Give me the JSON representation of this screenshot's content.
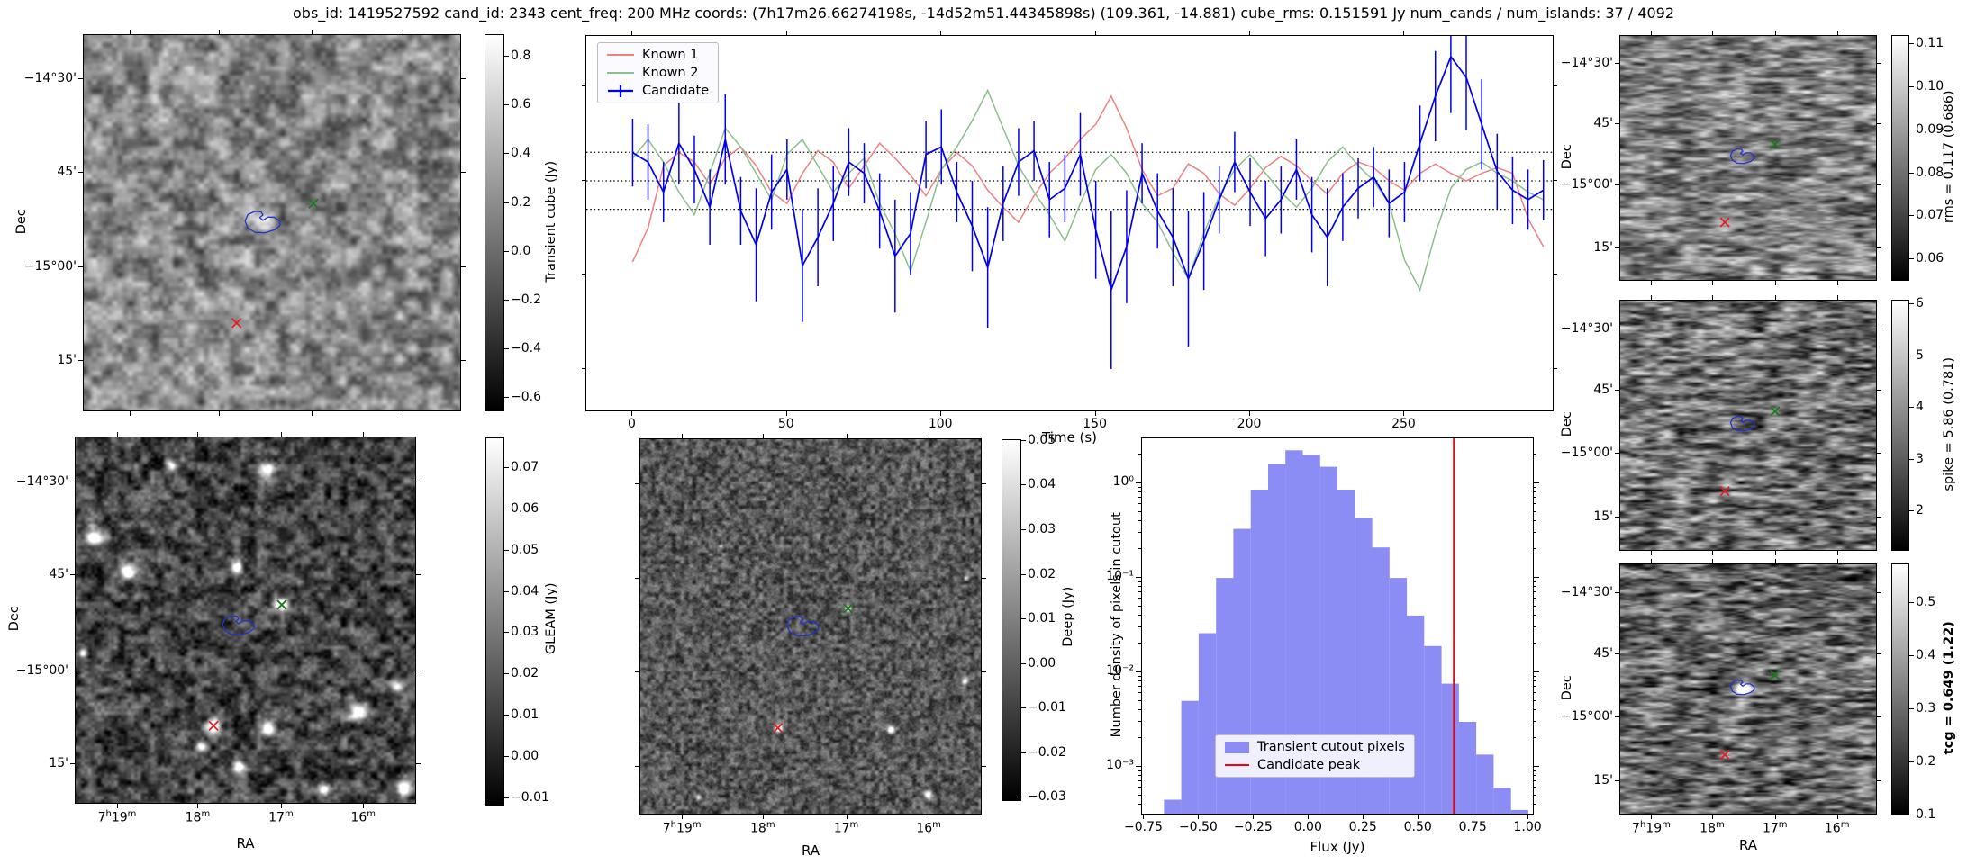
{
  "title": "obs_id: 1419527592 cand_id: 2343 cent_freq: 200 MHz coords: (7h17m26.66274198s, -14d52m51.44345898s) (109.361, -14.881) cube_rms: 0.151591 Jy num_cands / num_islands: 37 / 4092",
  "colors": {
    "known1": "#f08080",
    "known2": "#8cbf8c",
    "candidate": "#0000ee",
    "hist_fill": "#8c8cf5",
    "peak_line": "#ff0000",
    "contour": "#2233cc",
    "green_marker": "#1a7a1a",
    "red_marker": "#e02020",
    "dotted_line": "#000000"
  },
  "sky_axes": {
    "dec_label": "Dec",
    "ra_label": "RA",
    "dec_ticks": [
      "-14°30'",
      "45'",
      "-15°00'",
      "15'"
    ],
    "ra_ticks": [
      "7h19m",
      "18m",
      "17m",
      "16m"
    ]
  },
  "chart_data": [
    {
      "id": "transient_cutout",
      "type": "heatmap",
      "ylabel": "Dec",
      "colorbar": {
        "label": "Transient cube (Jy)",
        "tick_labels": [
          "0.8",
          "0.6",
          "0.4",
          "0.2",
          "0.0",
          "-0.2",
          "-0.4",
          "-0.6"
        ],
        "vmin": -0.66,
        "vmax": 0.89
      },
      "markers": {
        "green_x": [
          0.61,
          0.449
        ],
        "red_x": [
          0.406,
          0.767
        ],
        "contour": [
          0.476,
          0.499
        ]
      }
    },
    {
      "id": "lightcurve",
      "type": "line",
      "xlabel": "Time (s)",
      "x_ticks": [
        0,
        50,
        100,
        150,
        200,
        250
      ],
      "xlim": [
        -15,
        298
      ],
      "ylim": [
        -1.22,
        0.77
      ],
      "x_step": 5,
      "hlines": [
        0.151591,
        0,
        -0.151591
      ],
      "legend_position": "upper left",
      "series": [
        {
          "name": "Known 1",
          "values": [
            -0.43,
            -0.25,
            0.08,
            0.15,
            0.1,
            -0.02,
            0.12,
            0.18,
            0.08,
            -0.06,
            -0.12,
            0.04,
            0.16,
            0.1,
            -0.04,
            0.08,
            0.2,
            0.12,
            0.03,
            -0.08,
            0.06,
            0.15,
            0.08,
            -0.05,
            -0.14,
            -0.22,
            -0.08,
            0.04,
            0.12,
            0.22,
            0.3,
            0.45,
            0.28,
            0.06,
            -0.08,
            -0.04,
            0.09,
            0.04,
            -0.07,
            -0.13,
            -0.04,
            0.07,
            0.13,
            0.08,
            0.0,
            -0.07,
            0.04,
            0.1,
            0.07,
            0.0,
            -0.05,
            0.04,
            0.09,
            0.04,
            0.0,
            0.04,
            0.07,
            0.04,
            -0.2,
            -0.35
          ]
        },
        {
          "name": "Known 2",
          "values": [
            0.12,
            0.22,
            0.1,
            -0.06,
            -0.18,
            0.04,
            0.28,
            0.18,
            0.04,
            -0.1,
            0.14,
            0.22,
            0.08,
            -0.06,
            0.04,
            0.12,
            -0.12,
            -0.28,
            -0.48,
            -0.22,
            0.06,
            0.18,
            0.32,
            0.48,
            0.28,
            0.08,
            -0.06,
            -0.18,
            -0.32,
            -0.12,
            0.06,
            0.14,
            0.04,
            -0.12,
            -0.22,
            -0.38,
            -0.52,
            -0.28,
            -0.08,
            0.06,
            0.14,
            0.04,
            -0.06,
            -0.14,
            -0.04,
            0.1,
            0.18,
            0.08,
            0.0,
            -0.12,
            -0.42,
            -0.58,
            -0.28,
            -0.04,
            0.06,
            0.1,
            0.04,
            0.0,
            -0.06,
            -0.1
          ]
        },
        {
          "name": "Candidate",
          "values": [
            0.15,
            0.1,
            -0.06,
            0.2,
            0.06,
            -0.14,
            0.22,
            -0.16,
            -0.34,
            -0.06,
            0.06,
            -0.45,
            -0.3,
            -0.12,
            0.1,
            0.04,
            -0.16,
            -0.4,
            -0.28,
            0.14,
            0.18,
            -0.06,
            -0.24,
            -0.46,
            -0.12,
            0.1,
            0.16,
            -0.1,
            -0.04,
            0.14,
            -0.26,
            -0.58,
            -0.35,
            0.04,
            -0.16,
            -0.3,
            -0.52,
            -0.32,
            -0.1,
            0.1,
            -0.06,
            -0.2,
            -0.1,
            0.06,
            -0.18,
            -0.3,
            -0.14,
            -0.04,
            0.02,
            -0.12,
            -0.06,
            0.2,
            0.45,
            0.66,
            0.55,
            0.3,
            0.05,
            -0.05,
            -0.1,
            -0.05
          ],
          "errors": [
            0.18,
            0.2,
            0.16,
            0.22,
            0.18,
            0.2,
            0.24,
            0.18,
            0.3,
            0.2,
            0.16,
            0.3,
            0.26,
            0.2,
            0.18,
            0.16,
            0.2,
            0.3,
            0.22,
            0.18,
            0.2,
            0.16,
            0.24,
            0.32,
            0.2,
            0.18,
            0.16,
            0.2,
            0.18,
            0.22,
            0.26,
            0.42,
            0.3,
            0.16,
            0.2,
            0.26,
            0.36,
            0.26,
            0.18,
            0.16,
            0.18,
            0.2,
            0.18,
            0.16,
            0.2,
            0.26,
            0.18,
            0.16,
            0.16,
            0.18,
            0.16,
            0.2,
            0.24,
            0.3,
            0.28,
            0.24,
            0.2,
            0.18,
            0.16,
            0.16
          ]
        }
      ]
    },
    {
      "id": "gleam_cutout",
      "type": "heatmap",
      "xlabel": "RA",
      "ylabel": "Dec",
      "colorbar": {
        "label": "GLEAM (Jy)",
        "tick_labels": [
          "0.07",
          "0.06",
          "0.05",
          "0.04",
          "0.03",
          "0.02",
          "0.01",
          "0.00",
          "-0.01"
        ],
        "vmin": -0.012,
        "vmax": 0.0772
      },
      "markers": {
        "green_x": [
          0.607,
          0.458
        ],
        "red_x": [
          0.406,
          0.789
        ],
        "contour": [
          0.48,
          0.515
        ]
      }
    },
    {
      "id": "deep_cutout",
      "type": "heatmap",
      "xlabel": "RA",
      "colorbar": {
        "label": "Deep (Jy)",
        "tick_labels": [
          "0.05",
          "0.04",
          "0.03",
          "0.02",
          "0.01",
          "0.00",
          "-0.01",
          "-0.02",
          "-0.03"
        ],
        "vmin": -0.031,
        "vmax": 0.0502
      },
      "markers": {
        "green_x": [
          0.61,
          0.452
        ],
        "red_x": [
          0.404,
          0.771
        ],
        "contour": [
          0.478,
          0.5
        ]
      }
    },
    {
      "id": "flux_histogram",
      "type": "bar",
      "xlabel": "Flux (Jy)",
      "ylabel": "Number density of pixels in cutout",
      "x_tick_labels": [
        "-0.75",
        "-0.50",
        "-0.25",
        "0.00",
        "0.25",
        "0.50",
        "0.75",
        "1.00"
      ],
      "x_tick_values": [
        -0.75,
        -0.5,
        -0.25,
        0,
        0.25,
        0.5,
        0.75,
        1.0
      ],
      "y_tick_labels": [
        "10⁰",
        "10⁻¹",
        "10⁻²",
        "10⁻³"
      ],
      "y_tick_values": [
        1,
        0.1,
        0.01,
        0.001
      ],
      "y_scale": "log",
      "xlim": [
        -0.76,
        1.02
      ],
      "ylim": [
        0.00032,
        3
      ],
      "bin_start": -0.66,
      "bin_width": 0.079,
      "values": [
        0.00045,
        0.005,
        0.026,
        0.1,
        0.33,
        0.86,
        1.6,
        2.24,
        2.0,
        1.5,
        0.86,
        0.43,
        0.21,
        0.1,
        0.04,
        0.019,
        0.0076,
        0.003,
        0.00135,
        0.0006,
        0.00035
      ],
      "candidate_peak": 0.66,
      "legend": [
        "Transient cutout pixels",
        "Candidate peak"
      ]
    },
    {
      "id": "rms_map",
      "type": "heatmap",
      "ylabel": "Dec",
      "colorbar": {
        "label": "rms = 0.117 (0.686)",
        "tick_labels": [
          "0.11",
          "0.10",
          "0.09",
          "0.08",
          "0.07",
          "0.06"
        ],
        "vmin": 0.0548,
        "vmax": 0.1119
      },
      "markers": {
        "green_x": [
          0.605,
          0.444
        ],
        "red_x": [
          0.409,
          0.764
        ],
        "contour": [
          0.479,
          0.494
        ]
      }
    },
    {
      "id": "spike_map",
      "type": "heatmap",
      "ylabel": "Dec",
      "colorbar": {
        "label": "spike = 5.86 (0.781)",
        "tick_labels": [
          "6",
          "5",
          "4",
          "3",
          "2"
        ],
        "vmin": 1.22,
        "vmax": 6.07
      },
      "markers": {
        "green_x": [
          0.605,
          0.444
        ],
        "red_x": [
          0.409,
          0.764
        ],
        "contour": [
          0.479,
          0.494
        ]
      }
    },
    {
      "id": "tcg_map",
      "type": "heatmap",
      "xlabel": "RA",
      "ylabel": "Dec",
      "colorbar": {
        "label": "tcg = 0.649 (1.22)",
        "tick_labels": [
          "0.5",
          "0.4",
          "0.3",
          "0.2",
          "0.1"
        ],
        "vmin": 0.1,
        "vmax": 0.573,
        "bold": true
      },
      "markers": {
        "green_x": [
          0.605,
          0.444
        ],
        "red_x": [
          0.409,
          0.764
        ],
        "contour": [
          0.479,
          0.494
        ]
      }
    }
  ]
}
